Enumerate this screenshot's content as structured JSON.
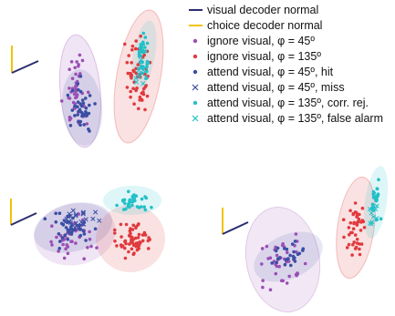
{
  "legend": {
    "visual_decoder": {
      "label": "visual decoder normal",
      "color": "#2b2e6e"
    },
    "choice_decoder": {
      "label": "choice decoder normal",
      "color": "#f2c300"
    },
    "ignore_45": {
      "label": "ignore visual, φ = 45º",
      "color": "#9b4fb5",
      "marker": "dot"
    },
    "ignore_135": {
      "label": "ignore visual, φ = 135º",
      "color": "#e03a3e",
      "marker": "dot"
    },
    "attend_45_hit": {
      "label": "attend visual, φ = 45º, hit",
      "color": "#3a4fa3",
      "marker": "dot"
    },
    "attend_45_miss": {
      "label": "attend visual, φ = 45º, miss",
      "color": "#3a4fa3",
      "marker": "x"
    },
    "attend_135_cr": {
      "label": "attend visual, φ = 135º, corr. rej.",
      "color": "#22c0c8",
      "marker": "dot"
    },
    "attend_135_fa": {
      "label": "attend visual, φ = 135º, false alarm",
      "color": "#22c0c8",
      "marker": "x"
    }
  },
  "chart_data": [
    {
      "type": "scatter",
      "title": "",
      "series": [
        {
          "key": "ignore_45",
          "values_approx": "cluster upper-left, spread vertically"
        },
        {
          "key": "ignore_135",
          "values_approx": "cluster upper-middle, spread vertically"
        },
        {
          "key": "attend_45_hit",
          "values_approx": "inside left ellipse"
        },
        {
          "key": "attend_135_cr",
          "values_approx": "inside right ellipse"
        },
        {
          "key": "attend_135_fa",
          "values_approx": "inside right ellipse"
        }
      ]
    },
    {
      "type": "scatter",
      "title": "",
      "series": [
        {
          "key": "ignore_45"
        },
        {
          "key": "ignore_135"
        },
        {
          "key": "attend_45_hit"
        },
        {
          "key": "attend_45_miss"
        },
        {
          "key": "attend_135_cr"
        }
      ]
    },
    {
      "type": "scatter",
      "title": "",
      "series": [
        {
          "key": "ignore_45"
        },
        {
          "key": "ignore_135"
        },
        {
          "key": "attend_45_hit"
        },
        {
          "key": "attend_135_cr"
        },
        {
          "key": "attend_135_fa"
        }
      ]
    }
  ]
}
